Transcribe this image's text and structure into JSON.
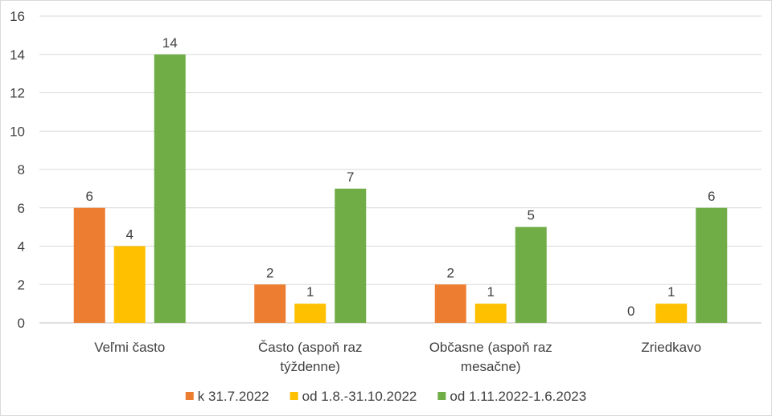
{
  "chart_data": {
    "type": "bar",
    "categories": [
      [
        "Veľmi často"
      ],
      [
        "Často (aspoň raz",
        "týždenne)"
      ],
      [
        "Občasne (aspoň raz",
        "mesačne)"
      ],
      [
        "Zriedkavo"
      ]
    ],
    "series": [
      {
        "name": "k 31.7.2022",
        "color": "#ed7d31",
        "values": [
          6,
          2,
          2,
          0
        ]
      },
      {
        "name": "od 1.8.-31.10.2022",
        "color": "#ffc000",
        "values": [
          4,
          1,
          1,
          1
        ]
      },
      {
        "name": "od 1.11.2022-1.6.2023",
        "color": "#70ad47",
        "values": [
          14,
          7,
          5,
          6
        ]
      }
    ],
    "ylim": [
      0,
      16
    ],
    "yticks": [
      0,
      2,
      4,
      6,
      8,
      10,
      12,
      14,
      16
    ],
    "grid": true,
    "legend": "bottom",
    "data_labels": true
  }
}
